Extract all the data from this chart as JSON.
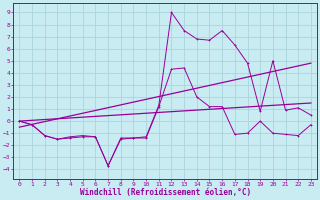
{
  "background_color": "#c8ecf2",
  "grid_color": "#aad4dc",
  "line_color": "#990099",
  "xlabel": "Windchill (Refroidissement éolien,°C)",
  "xlabel_fontsize": 5.5,
  "yticks": [
    -4,
    -3,
    -2,
    -1,
    0,
    1,
    2,
    3,
    4,
    5,
    6,
    7,
    8,
    9
  ],
  "xticks": [
    0,
    1,
    2,
    3,
    4,
    5,
    6,
    7,
    8,
    9,
    10,
    11,
    12,
    13,
    14,
    15,
    16,
    17,
    18,
    19,
    20,
    21,
    22,
    23
  ],
  "xlim": [
    -0.5,
    23.5
  ],
  "ylim": [
    -4.8,
    9.8
  ],
  "series_upper_x": [
    0,
    1,
    2,
    3,
    4,
    5,
    6,
    7,
    8,
    9,
    10,
    11,
    12,
    13,
    14,
    15,
    16,
    17,
    18,
    19,
    20,
    21,
    22,
    23
  ],
  "series_upper_y": [
    0.0,
    -0.3,
    -1.2,
    -1.5,
    -1.3,
    -1.2,
    -1.3,
    -3.7,
    -1.5,
    -1.4,
    -1.3,
    1.3,
    9.0,
    7.5,
    6.8,
    6.7,
    7.5,
    6.3,
    4.8,
    0.8,
    5.0,
    0.9,
    1.1,
    0.5
  ],
  "series_lower_x": [
    0,
    1,
    2,
    3,
    4,
    5,
    6,
    7,
    8,
    9,
    10,
    11,
    12,
    13,
    14,
    15,
    16,
    17,
    18,
    19,
    20,
    21,
    22,
    23
  ],
  "series_lower_y": [
    0.0,
    -0.3,
    -1.2,
    -1.5,
    -1.4,
    -1.3,
    -1.3,
    -3.7,
    -1.4,
    -1.4,
    -1.4,
    1.2,
    4.3,
    4.4,
    2.0,
    1.2,
    1.2,
    -1.1,
    -1.0,
    0.0,
    -1.0,
    -1.1,
    -1.2,
    -0.3
  ],
  "trend1_x": [
    0,
    23
  ],
  "trend1_y": [
    0.0,
    1.5
  ],
  "trend2_x": [
    0,
    23
  ],
  "trend2_y": [
    -0.5,
    4.8
  ]
}
